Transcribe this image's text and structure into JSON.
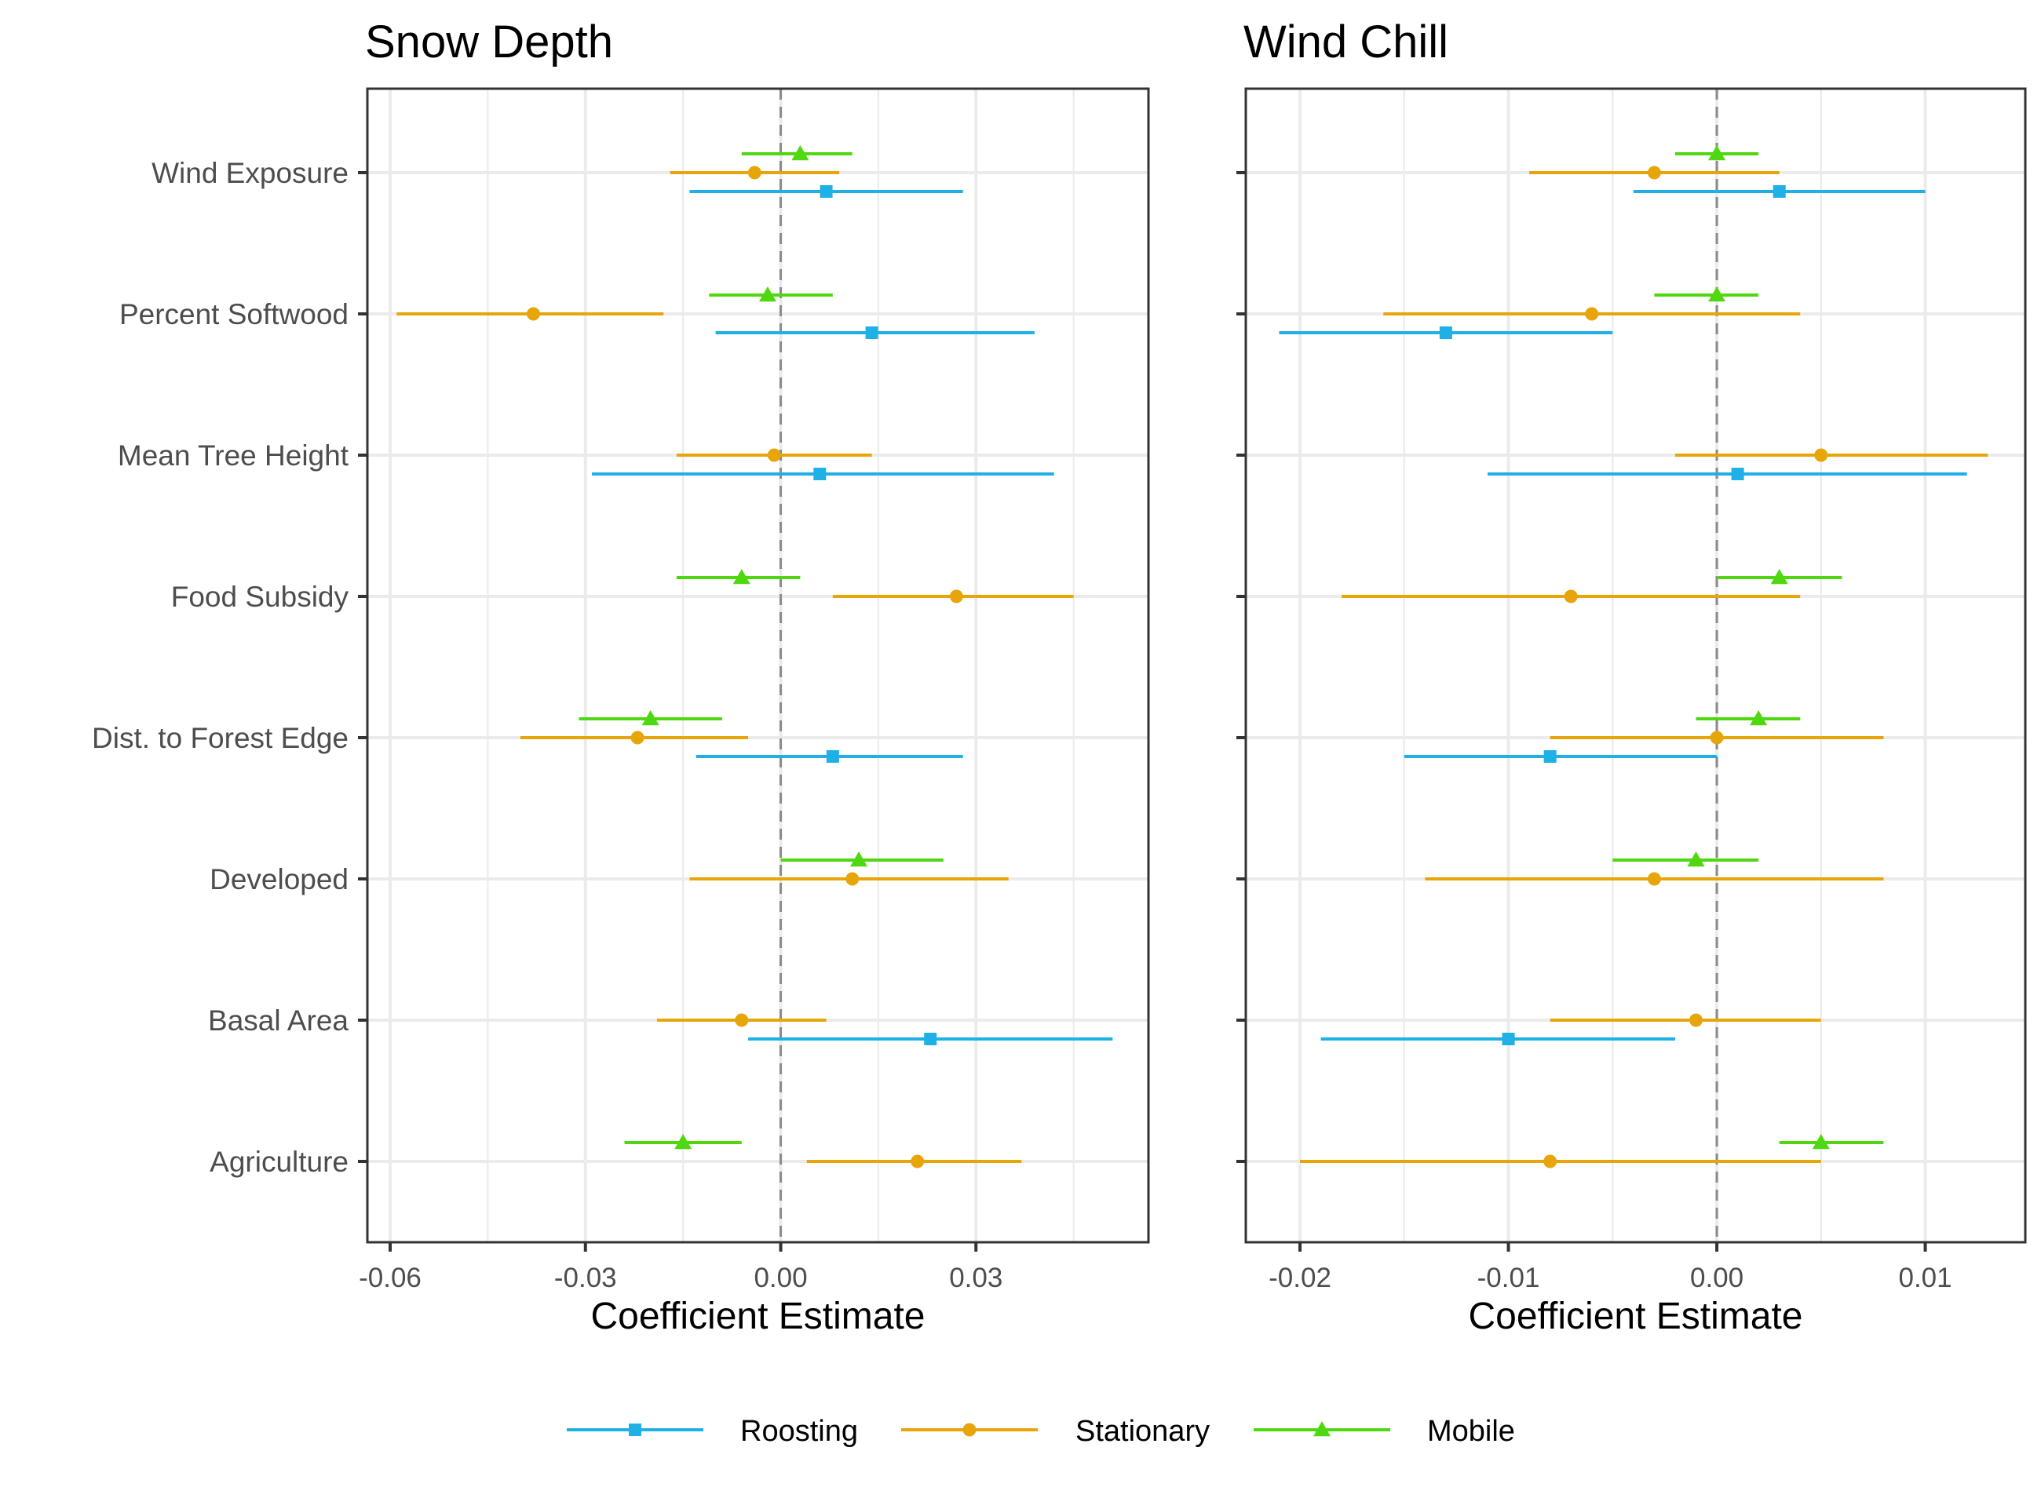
{
  "chart_data": {
    "type": "scatter",
    "subtype": "coefficient-forest-plot",
    "categories": [
      "Wind Exposure",
      "Percent Softwood",
      "Mean Tree Height",
      "Food Subsidy",
      "Dist. to Forest Edge",
      "Developed",
      "Basal Area",
      "Agriculture"
    ],
    "series": [
      {
        "name": "Roosting",
        "color": "#1fb0e6",
        "marker": "square"
      },
      {
        "name": "Stationary",
        "color": "#e8a50a",
        "marker": "circle"
      },
      {
        "name": "Mobile",
        "color": "#4fd80f",
        "marker": "triangle"
      }
    ],
    "grid": true,
    "legend": "bottom",
    "reference_line": 0,
    "panels": [
      {
        "title": "Snow Depth",
        "xlabel": "Coefficient Estimate",
        "xlim": [
          -0.0635,
          0.0565
        ],
        "xticks": [
          -0.06,
          -0.03,
          0.0,
          0.03
        ],
        "xtick_labels": [
          "-0.06",
          "-0.03",
          "0.00",
          "0.03"
        ],
        "estimates": {
          "Wind Exposure": {
            "Mobile": {
              "est": 0.003,
              "lo": -0.006,
              "hi": 0.011
            },
            "Stationary": {
              "est": -0.004,
              "lo": -0.017,
              "hi": 0.009
            },
            "Roosting": {
              "est": 0.007,
              "lo": -0.014,
              "hi": 0.028
            }
          },
          "Percent Softwood": {
            "Mobile": {
              "est": -0.002,
              "lo": -0.011,
              "hi": 0.008
            },
            "Stationary": {
              "est": -0.038,
              "lo": -0.059,
              "hi": -0.018
            },
            "Roosting": {
              "est": 0.014,
              "lo": -0.01,
              "hi": 0.039
            }
          },
          "Mean Tree Height": {
            "Stationary": {
              "est": -0.001,
              "lo": -0.016,
              "hi": 0.014
            },
            "Roosting": {
              "est": 0.006,
              "lo": -0.029,
              "hi": 0.042
            }
          },
          "Food Subsidy": {
            "Mobile": {
              "est": -0.006,
              "lo": -0.016,
              "hi": 0.003
            },
            "Stationary": {
              "est": 0.027,
              "lo": 0.008,
              "hi": 0.045
            }
          },
          "Dist. to Forest Edge": {
            "Mobile": {
              "est": -0.02,
              "lo": -0.031,
              "hi": -0.009
            },
            "Stationary": {
              "est": -0.022,
              "lo": -0.04,
              "hi": -0.005
            },
            "Roosting": {
              "est": 0.008,
              "lo": -0.013,
              "hi": 0.028
            }
          },
          "Developed": {
            "Mobile": {
              "est": 0.012,
              "lo": 0.0,
              "hi": 0.025
            },
            "Stationary": {
              "est": 0.011,
              "lo": -0.014,
              "hi": 0.035
            }
          },
          "Basal Area": {
            "Stationary": {
              "est": -0.006,
              "lo": -0.019,
              "hi": 0.007
            },
            "Roosting": {
              "est": 0.023,
              "lo": -0.005,
              "hi": 0.051
            }
          },
          "Agriculture": {
            "Mobile": {
              "est": -0.015,
              "lo": -0.024,
              "hi": -0.006
            },
            "Stationary": {
              "est": 0.021,
              "lo": 0.004,
              "hi": 0.037
            }
          }
        }
      },
      {
        "title": "Wind Chill",
        "xlabel": "Coefficient Estimate",
        "xlim": [
          -0.0226,
          0.0148
        ],
        "xticks": [
          -0.02,
          -0.01,
          0.0,
          0.01
        ],
        "xtick_labels": [
          "-0.02",
          "-0.01",
          "0.00",
          "0.01"
        ],
        "estimates": {
          "Wind Exposure": {
            "Mobile": {
              "est": 0.0,
              "lo": -0.002,
              "hi": 0.002
            },
            "Stationary": {
              "est": -0.003,
              "lo": -0.009,
              "hi": 0.003
            },
            "Roosting": {
              "est": 0.003,
              "lo": -0.004,
              "hi": 0.01
            }
          },
          "Percent Softwood": {
            "Mobile": {
              "est": 0.0,
              "lo": -0.003,
              "hi": 0.002
            },
            "Stationary": {
              "est": -0.006,
              "lo": -0.016,
              "hi": 0.004
            },
            "Roosting": {
              "est": -0.013,
              "lo": -0.021,
              "hi": -0.005
            }
          },
          "Mean Tree Height": {
            "Stationary": {
              "est": 0.005,
              "lo": -0.002,
              "hi": 0.013
            },
            "Roosting": {
              "est": 0.001,
              "lo": -0.011,
              "hi": 0.012
            }
          },
          "Food Subsidy": {
            "Mobile": {
              "est": 0.003,
              "lo": 0.0,
              "hi": 0.006
            },
            "Stationary": {
              "est": -0.007,
              "lo": -0.018,
              "hi": 0.004
            }
          },
          "Dist. to Forest Edge": {
            "Mobile": {
              "est": 0.002,
              "lo": -0.001,
              "hi": 0.004
            },
            "Stationary": {
              "est": 0.0,
              "lo": -0.008,
              "hi": 0.008
            },
            "Roosting": {
              "est": -0.008,
              "lo": -0.015,
              "hi": 0.0
            }
          },
          "Developed": {
            "Mobile": {
              "est": -0.001,
              "lo": -0.005,
              "hi": 0.002
            },
            "Stationary": {
              "est": -0.003,
              "lo": -0.014,
              "hi": 0.008
            }
          },
          "Basal Area": {
            "Stationary": {
              "est": -0.001,
              "lo": -0.008,
              "hi": 0.005
            },
            "Roosting": {
              "est": -0.01,
              "lo": -0.019,
              "hi": -0.002
            }
          },
          "Agriculture": {
            "Mobile": {
              "est": 0.005,
              "lo": 0.003,
              "hi": 0.008
            },
            "Stationary": {
              "est": -0.008,
              "lo": -0.02,
              "hi": 0.005
            }
          }
        }
      }
    ]
  }
}
